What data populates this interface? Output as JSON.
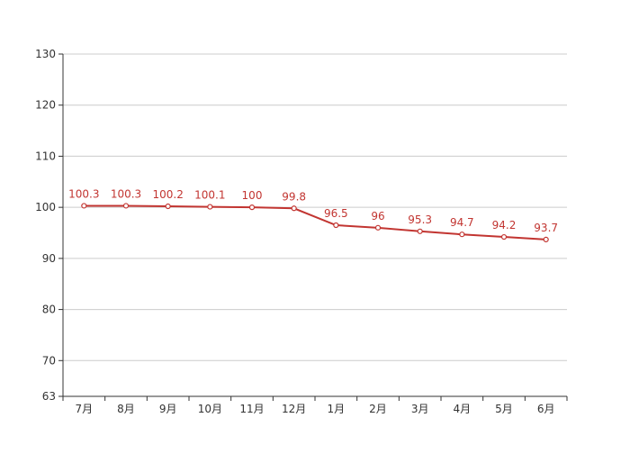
{
  "chart_data": {
    "type": "line",
    "categories": [
      "7月",
      "8月",
      "9月",
      "10月",
      "11月",
      "12月",
      "1月",
      "2月",
      "3月",
      "4月",
      "5月",
      "6月"
    ],
    "series": [
      {
        "values": [
          100.3,
          100.3,
          100.2,
          100.1,
          100,
          99.8,
          96.5,
          96,
          95.3,
          94.7,
          94.2,
          93.7
        ],
        "data_labels": [
          "100.3",
          "100.3",
          "100.2",
          "100.1",
          "100",
          "99.8",
          "96.5",
          "96",
          "95.3",
          "94.7",
          "94.2",
          "93.7"
        ],
        "color": "#c23531"
      }
    ],
    "yticks": [
      63,
      70,
      80,
      90,
      100,
      110,
      120,
      130
    ],
    "ylim": [
      63,
      130
    ],
    "grid": true,
    "legend": "none",
    "title": "",
    "xlabel": "",
    "ylabel": ""
  }
}
